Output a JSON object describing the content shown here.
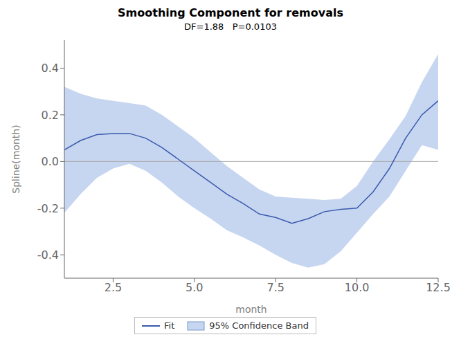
{
  "chart_data": {
    "type": "line",
    "title": "Smoothing Component for removals",
    "subtitle": "DF=1.88   P=0.0103",
    "xlabel": "month",
    "ylabel": "Spline(month)",
    "x": [
      1.0,
      1.5,
      2.0,
      2.5,
      3.0,
      3.5,
      4.0,
      4.5,
      5.0,
      5.5,
      6.0,
      6.5,
      7.0,
      7.5,
      8.0,
      8.5,
      9.0,
      9.5,
      10.0,
      10.5,
      11.0,
      11.5,
      12.0,
      12.5
    ],
    "series": [
      {
        "name": "Fit",
        "type": "line",
        "color": "#3a5aad",
        "values": [
          0.05,
          0.09,
          0.115,
          0.12,
          0.12,
          0.1,
          0.06,
          0.01,
          -0.04,
          -0.09,
          -0.14,
          -0.18,
          -0.225,
          -0.24,
          -0.265,
          -0.245,
          -0.215,
          -0.205,
          -0.2,
          -0.13,
          -0.03,
          0.1,
          0.2,
          0.26
        ]
      },
      {
        "name": "95% Confidence Band",
        "type": "band",
        "color": "#a8bee8",
        "lower": [
          -0.22,
          -0.14,
          -0.07,
          -0.03,
          -0.01,
          -0.04,
          -0.09,
          -0.15,
          -0.2,
          -0.245,
          -0.295,
          -0.325,
          -0.36,
          -0.4,
          -0.435,
          -0.455,
          -0.44,
          -0.385,
          -0.305,
          -0.225,
          -0.15,
          -0.04,
          0.07,
          0.05
        ],
        "upper": [
          0.32,
          0.29,
          0.27,
          0.26,
          0.25,
          0.24,
          0.2,
          0.15,
          0.1,
          0.04,
          -0.02,
          -0.07,
          -0.12,
          -0.15,
          -0.155,
          -0.16,
          -0.165,
          -0.16,
          -0.105,
          0.0,
          0.095,
          0.195,
          0.34,
          0.46
        ]
      }
    ],
    "hlines": [
      {
        "value": 0,
        "color": "#aaaaaa"
      }
    ],
    "xlim": [
      1,
      12.5
    ],
    "ylim": [
      -0.5,
      0.52
    ],
    "xticks": [
      2.5,
      {
        "value": 5.0,
        "label": "5.0"
      },
      7.5,
      {
        "value": 10.0,
        "label": "10.0"
      },
      12.5
    ],
    "yticks": [
      -0.4,
      -0.2,
      {
        "value": 0.0,
        "label": "0.0"
      },
      0.2,
      0.4
    ],
    "grid": false,
    "legend": "bottom"
  }
}
